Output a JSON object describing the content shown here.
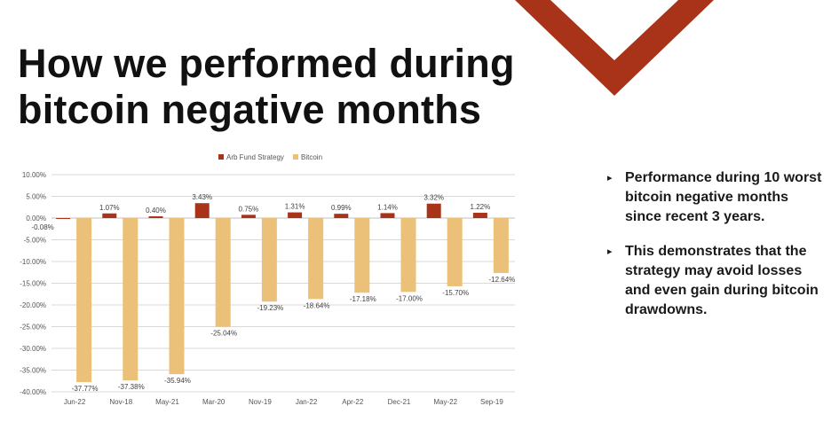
{
  "slide": {
    "title_line1": "How we performed during",
    "title_line2": "bitcoin negative months"
  },
  "colors": {
    "accent": "#A93319",
    "arb_bar": "#A93319",
    "bitcoin_bar": "#EBC17A",
    "title": "#111111"
  },
  "bullets": [
    {
      "text": "Performance during 10 worst bitcoin negative months since recent 3 years."
    },
    {
      "text": "This demonstrates that the strategy may avoid losses and even gain during bitcoin drawdowns."
    }
  ],
  "chart_data": {
    "type": "bar",
    "title": "",
    "xlabel": "",
    "ylabel": "",
    "categories": [
      "Jun-22",
      "Nov-18",
      "May-21",
      "Mar-20",
      "Nov-19",
      "Jan-22",
      "Apr-22",
      "Dec-21",
      "May-22",
      "Sep-19"
    ],
    "series": [
      {
        "name": "Arb Fund Strategy",
        "color": "#A93319",
        "values": [
          -0.08,
          1.07,
          0.4,
          3.43,
          0.75,
          1.31,
          0.99,
          1.14,
          3.32,
          1.22
        ],
        "labels": [
          "-0.08%",
          "1.07%",
          "0.40%",
          "3.43%",
          "0.75%",
          "1.31%",
          "0.99%",
          "1.14%",
          "3.32%",
          "1.22%"
        ]
      },
      {
        "name": "Bitcoin",
        "color": "#EBC17A",
        "values": [
          -37.77,
          -37.38,
          -35.94,
          -25.04,
          -19.23,
          -18.64,
          -17.18,
          -17.0,
          -15.7,
          -12.64
        ],
        "labels": [
          "-37.77%",
          "-37.38%",
          "-35.94%",
          "-25.04%",
          "-19.23%",
          "-18.64%",
          "-17.18%",
          "-17.00%",
          "-15.70%",
          "-12.64%"
        ]
      }
    ],
    "ylim": [
      -40,
      10
    ],
    "yticks": [
      10,
      5,
      0,
      -5,
      -10,
      -15,
      -20,
      -25,
      -30,
      -35,
      -40
    ],
    "ytick_labels": [
      "10.00%",
      "5.00%",
      "0.00%",
      "-5.00%",
      "-10.00%",
      "-15.00%",
      "-20.00%",
      "-25.00%",
      "-30.00%",
      "-35.00%",
      "-40.00%"
    ],
    "grid": true,
    "legend_position": "top-center"
  }
}
